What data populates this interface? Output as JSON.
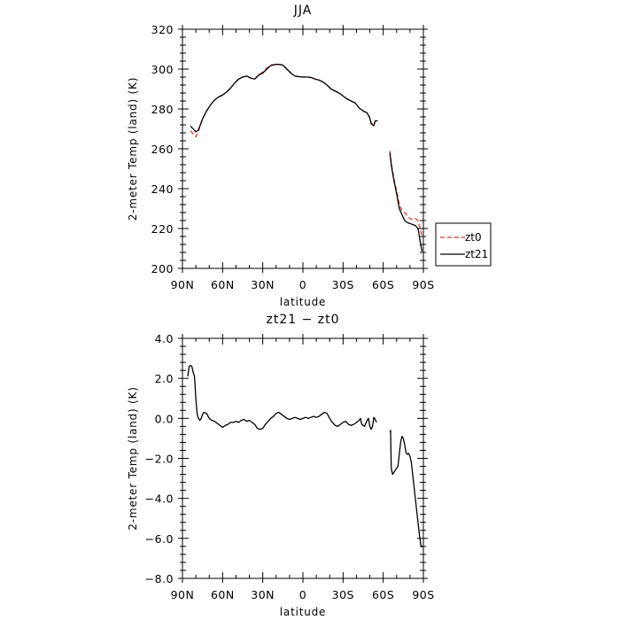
{
  "chart_data": [
    {
      "type": "line",
      "title": "JJA",
      "xlabel": "latitude",
      "ylabel": "2-meter Temp (land) (K)",
      "xlim": [
        90,
        -90
      ],
      "ylim": [
        200,
        320
      ],
      "xticks": [
        90,
        60,
        30,
        0,
        -30,
        -60,
        -90
      ],
      "xticklabels": [
        "90N",
        "60N",
        "30N",
        "0",
        "30S",
        "60S",
        "90S"
      ],
      "yticks": [
        200,
        220,
        240,
        260,
        280,
        300,
        320
      ],
      "yticklabels": [
        "200",
        "220",
        "240",
        "260",
        "280",
        "300",
        "320"
      ],
      "grid": false,
      "legend": "outside-right",
      "series": [
        {
          "name": "zt0",
          "color": "#e8322a",
          "dash": "dashed",
          "segments": [
            [
              [
                84,
                269.0
              ],
              [
                82,
                267.5
              ],
              [
                80,
                266.0
              ],
              [
                78,
                269.0
              ],
              [
                75,
                275.0
              ],
              [
                72,
                279.0
              ],
              [
                69,
                282.0
              ],
              [
                66,
                284.5
              ],
              [
                63,
                286.0
              ],
              [
                60,
                287.0
              ],
              [
                57,
                288.5
              ],
              [
                54,
                290.5
              ],
              [
                51,
                293.0
              ],
              [
                48,
                295.0
              ],
              [
                45,
                296.0
              ],
              [
                42,
                296.5
              ],
              [
                39,
                295.5
              ],
              [
                36,
                295.0
              ],
              [
                33,
                297.0
              ],
              [
                30,
                298.5
              ],
              [
                27,
                300.5
              ],
              [
                24,
                302.0
              ],
              [
                21,
                302.3
              ],
              [
                18,
                302.4
              ],
              [
                15,
                302.0
              ],
              [
                12,
                300.0
              ],
              [
                9,
                298.0
              ],
              [
                6,
                296.5
              ],
              [
                3,
                296.2
              ],
              [
                0,
                296.0
              ],
              [
                -3,
                296.0
              ],
              [
                -6,
                295.8
              ],
              [
                -9,
                295.0
              ],
              [
                -12,
                294.5
              ],
              [
                -15,
                293.5
              ],
              [
                -18,
                292.0
              ],
              [
                -21,
                290.0
              ],
              [
                -24,
                289.0
              ],
              [
                -27,
                288.0
              ],
              [
                -30,
                286.5
              ],
              [
                -33,
                285.0
              ],
              [
                -36,
                284.0
              ],
              [
                -39,
                283.0
              ],
              [
                -42,
                280.5
              ],
              [
                -45,
                279.0
              ],
              [
                -48,
                278.0
              ],
              [
                -50,
                275.5
              ],
              [
                -51,
                273.0
              ],
              [
                -53,
                272.0
              ],
              [
                -54,
                274.0
              ],
              [
                -56,
                274.0
              ]
            ],
            [
              [
                -65,
                259.0
              ],
              [
                -66,
                253.0
              ],
              [
                -68,
                245.0
              ],
              [
                -70,
                239.0
              ],
              [
                -72,
                232.0
              ],
              [
                -74,
                229.0
              ],
              [
                -76,
                228.0
              ],
              [
                -78,
                226.5
              ],
              [
                -80,
                225.0
              ],
              [
                -82,
                224.5
              ],
              [
                -84,
                225.0
              ],
              [
                -86,
                224.0
              ],
              [
                -88,
                219.0
              ],
              [
                -89,
                216.0
              ]
            ]
          ]
        },
        {
          "name": "zt21",
          "color": "#000000",
          "dash": "solid",
          "segments": [
            [
              [
                84,
                271.5
              ],
              [
                82,
                270.0
              ],
              [
                80,
                268.5
              ],
              [
                78,
                269.5
              ],
              [
                75,
                275.0
              ],
              [
                72,
                279.0
              ],
              [
                69,
                282.0
              ],
              [
                66,
                284.5
              ],
              [
                63,
                286.0
              ],
              [
                60,
                287.0
              ],
              [
                57,
                288.5
              ],
              [
                54,
                290.5
              ],
              [
                51,
                293.0
              ],
              [
                48,
                295.0
              ],
              [
                45,
                296.0
              ],
              [
                42,
                296.5
              ],
              [
                39,
                295.5
              ],
              [
                36,
                295.0
              ],
              [
                33,
                297.0
              ],
              [
                30,
                298.0
              ],
              [
                27,
                300.0
              ],
              [
                24,
                301.8
              ],
              [
                21,
                302.3
              ],
              [
                18,
                302.4
              ],
              [
                15,
                302.0
              ],
              [
                12,
                300.0
              ],
              [
                9,
                298.0
              ],
              [
                6,
                296.5
              ],
              [
                3,
                296.2
              ],
              [
                0,
                296.0
              ],
              [
                -3,
                296.0
              ],
              [
                -6,
                295.8
              ],
              [
                -9,
                295.0
              ],
              [
                -12,
                294.5
              ],
              [
                -15,
                293.5
              ],
              [
                -18,
                292.0
              ],
              [
                -21,
                290.0
              ],
              [
                -24,
                289.0
              ],
              [
                -27,
                288.0
              ],
              [
                -30,
                286.5
              ],
              [
                -33,
                285.0
              ],
              [
                -36,
                284.0
              ],
              [
                -39,
                283.0
              ],
              [
                -42,
                280.5
              ],
              [
                -45,
                279.0
              ],
              [
                -48,
                278.0
              ],
              [
                -50,
                275.5
              ],
              [
                -51,
                272.5
              ],
              [
                -53,
                271.5
              ],
              [
                -54,
                274.0
              ],
              [
                -56,
                274.0
              ]
            ],
            [
              [
                -65,
                258.0
              ],
              [
                -66,
                252.0
              ],
              [
                -68,
                244.0
              ],
              [
                -70,
                237.5
              ],
              [
                -72,
                230.0
              ],
              [
                -74,
                227.0
              ],
              [
                -76,
                224.0
              ],
              [
                -78,
                223.0
              ],
              [
                -80,
                222.5
              ],
              [
                -82,
                222.0
              ],
              [
                -84,
                221.5
              ],
              [
                -86,
                220.0
              ],
              [
                -88,
                212.0
              ],
              [
                -89,
                208.5
              ]
            ]
          ]
        }
      ]
    },
    {
      "type": "line",
      "title": "zt21 − zt0",
      "xlabel": "latitude",
      "ylabel": "2-meter Temp (land) (K)",
      "xlim": [
        90,
        -90
      ],
      "ylim": [
        -8,
        4
      ],
      "xticks": [
        90,
        60,
        30,
        0,
        -30,
        -60,
        -90
      ],
      "xticklabels": [
        "90N",
        "60N",
        "30N",
        "0",
        "30S",
        "60S",
        "90S"
      ],
      "yticks": [
        -8,
        -6,
        -4,
        -2,
        0,
        2,
        4
      ],
      "yticklabels": [
        "−8.0",
        "−6.0",
        "−4.0",
        "−2.0",
        "0.0",
        "2.0",
        "4.0"
      ],
      "grid": false,
      "series": [
        {
          "color": "#000000",
          "dash": "solid",
          "segments": [
            [
              [
                86,
                2.1
              ],
              [
                85,
                2.6
              ],
              [
                84,
                2.65
              ],
              [
                83,
                2.6
              ],
              [
                82,
                2.3
              ],
              [
                81,
                2.1
              ],
              [
                80,
                1.0
              ],
              [
                79,
                0.2
              ],
              [
                78,
                0.0
              ],
              [
                77,
                -0.1
              ],
              [
                76,
                0.0
              ],
              [
                75,
                0.2
              ],
              [
                74,
                0.3
              ],
              [
                72,
                0.25
              ],
              [
                70,
                0.0
              ],
              [
                68,
                -0.1
              ],
              [
                66,
                -0.15
              ],
              [
                64,
                -0.25
              ],
              [
                62,
                -0.35
              ],
              [
                60,
                -0.45
              ],
              [
                58,
                -0.35
              ],
              [
                56,
                -0.3
              ],
              [
                54,
                -0.2
              ],
              [
                52,
                -0.2
              ],
              [
                50,
                -0.15
              ],
              [
                48,
                -0.2
              ],
              [
                46,
                -0.1
              ],
              [
                44,
                -0.05
              ],
              [
                42,
                -0.15
              ],
              [
                40,
                -0.1
              ],
              [
                38,
                -0.2
              ],
              [
                36,
                -0.3
              ],
              [
                34,
                -0.5
              ],
              [
                32,
                -0.55
              ],
              [
                30,
                -0.5
              ],
              [
                28,
                -0.3
              ],
              [
                26,
                -0.15
              ],
              [
                24,
                0.0
              ],
              [
                22,
                0.1
              ],
              [
                20,
                0.25
              ],
              [
                18,
                0.3
              ],
              [
                16,
                0.2
              ],
              [
                14,
                0.1
              ],
              [
                12,
                0.0
              ],
              [
                10,
                -0.05
              ],
              [
                8,
                0.0
              ],
              [
                6,
                0.05
              ],
              [
                4,
                0.0
              ],
              [
                2,
                -0.05
              ],
              [
                0,
                0.0
              ],
              [
                -2,
                0.05
              ],
              [
                -4,
                0.0
              ],
              [
                -6,
                0.05
              ],
              [
                -8,
                0.1
              ],
              [
                -10,
                0.05
              ],
              [
                -12,
                0.1
              ],
              [
                -14,
                0.2
              ],
              [
                -16,
                0.3
              ],
              [
                -18,
                0.25
              ],
              [
                -20,
                0.0
              ],
              [
                -22,
                -0.2
              ],
              [
                -24,
                -0.35
              ],
              [
                -26,
                -0.4
              ],
              [
                -28,
                -0.3
              ],
              [
                -30,
                -0.2
              ],
              [
                -32,
                -0.15
              ],
              [
                -34,
                -0.3
              ],
              [
                -36,
                -0.35
              ],
              [
                -38,
                -0.3
              ],
              [
                -40,
                -0.2
              ],
              [
                -42,
                -0.1
              ],
              [
                -43,
                0.0
              ],
              [
                -44,
                -0.3
              ],
              [
                -46,
                -0.4
              ],
              [
                -48,
                -0.1
              ],
              [
                -49,
                0.0
              ],
              [
                -50,
                -0.4
              ],
              [
                -51,
                -0.55
              ],
              [
                -52,
                -0.4
              ],
              [
                -53,
                0.05
              ],
              [
                -54,
                -0.05
              ],
              [
                -55,
                -0.2
              ]
            ],
            [
              [
                -65,
                -0.7
              ],
              [
                -65.5,
                -0.6
              ],
              [
                -66,
                -2.5
              ],
              [
                -67,
                -2.8
              ],
              [
                -69,
                -2.6
              ],
              [
                -71,
                -2.4
              ],
              [
                -72,
                -1.8
              ],
              [
                -73,
                -1.2
              ],
              [
                -74,
                -0.9
              ],
              [
                -75,
                -1.0
              ],
              [
                -76,
                -1.3
              ],
              [
                -77,
                -1.7
              ],
              [
                -78,
                -1.8
              ],
              [
                -79,
                -1.75
              ],
              [
                -80,
                -1.9
              ],
              [
                -81,
                -2.2
              ],
              [
                -82,
                -2.8
              ],
              [
                -83,
                -3.4
              ],
              [
                -84,
                -4.0
              ],
              [
                -85,
                -4.6
              ],
              [
                -86,
                -5.2
              ],
              [
                -87,
                -5.8
              ],
              [
                -88,
                -6.3
              ],
              [
                -89,
                -6.45
              ]
            ]
          ]
        }
      ]
    }
  ]
}
